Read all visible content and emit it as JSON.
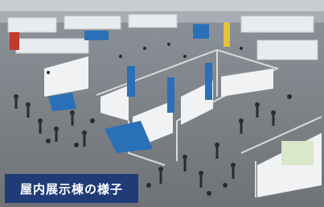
{
  "caption": "屋内展示棟の様子"
}
